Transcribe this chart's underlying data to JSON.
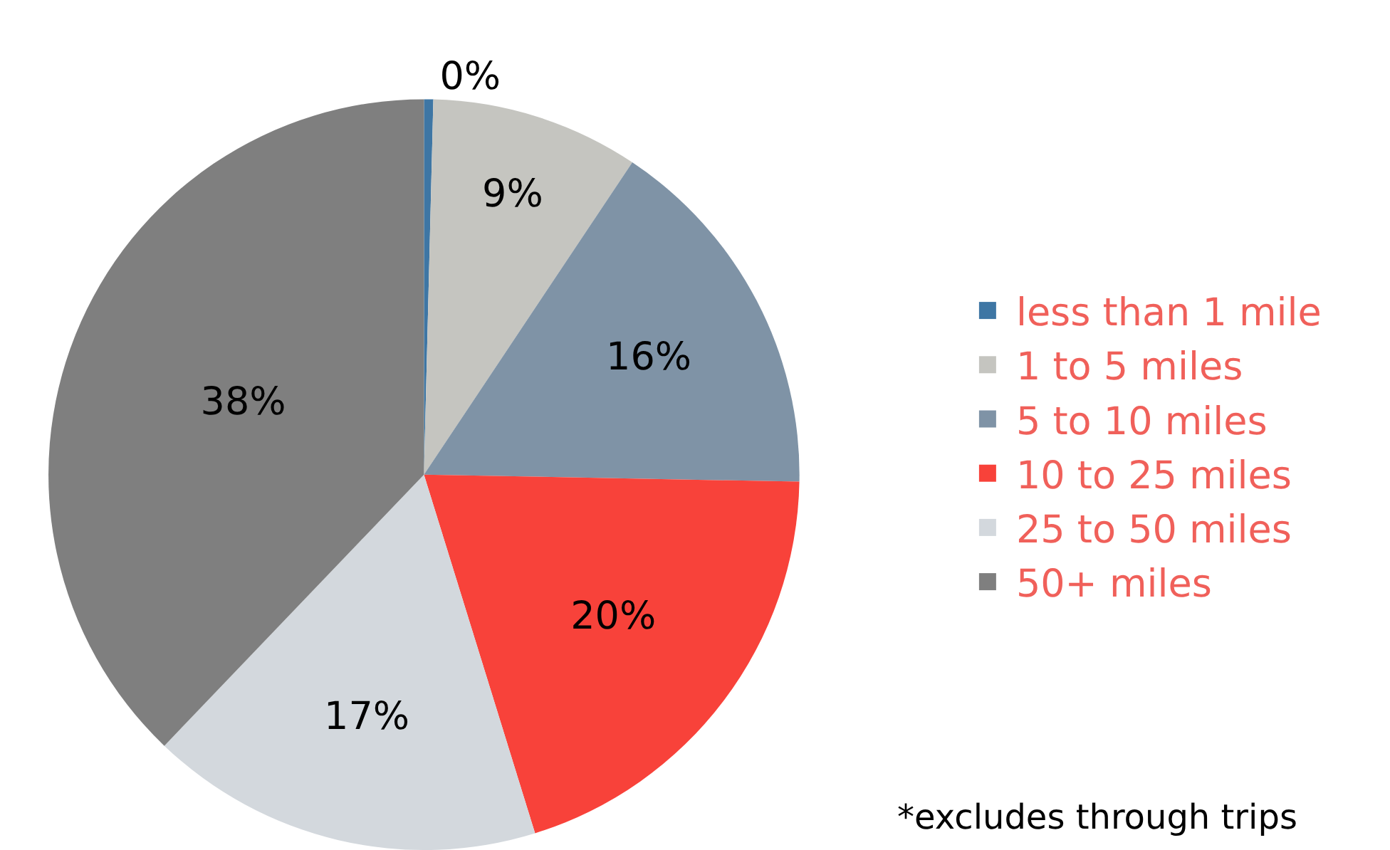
{
  "chart_data": {
    "type": "pie",
    "categories": [
      "less than 1 mile",
      "1 to 5 miles",
      "5 to 10 miles",
      "10 to 25 miles",
      "25 to 50 miles",
      "50+ miles"
    ],
    "values": [
      0.4,
      9,
      16,
      20,
      17,
      38
    ],
    "value_labels": [
      "0%",
      "9%",
      "16%",
      "20%",
      "17%",
      "38%"
    ],
    "colors": [
      "#3e76a4",
      "#c5c5c0",
      "#7f93a6",
      "#f8423a",
      "#d3d8dd",
      "#7f7f7f"
    ],
    "legend": "right",
    "annotations": [
      "*excludes through trips"
    ]
  }
}
